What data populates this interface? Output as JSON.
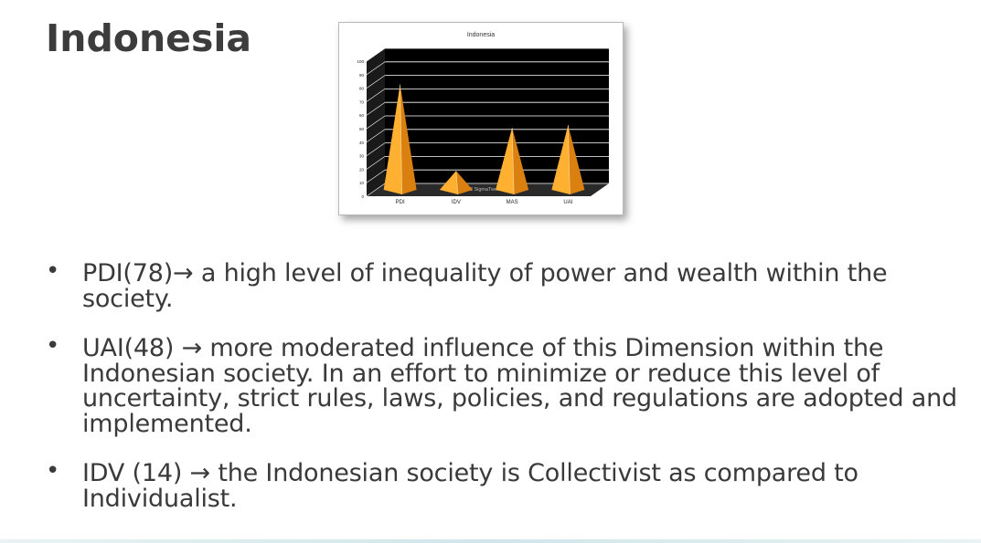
{
  "slide": {
    "title": "Indonesia"
  },
  "chart_data": {
    "type": "bar",
    "title": "Indonesia",
    "categories": [
      "PDI",
      "IDV",
      "MAS",
      "UAI"
    ],
    "values": [
      78,
      14,
      46,
      48
    ],
    "ylim": [
      0,
      100
    ],
    "yticks": [
      "0",
      "10",
      "20",
      "30",
      "40",
      "50",
      "60",
      "70",
      "80",
      "90",
      "100"
    ],
    "grid": true,
    "watermark": "©2003 SigmaTwoGroup.com",
    "bar_color": "#f5a020",
    "plot_background": "#000000"
  },
  "bullets": [
    {
      "marker": "•",
      "text": "PDI(78)→ a high level of inequality of power and wealth within the society."
    },
    {
      "marker": "•",
      "text": "UAI(48) → more moderated influence of this Dimension within the Indonesian society. In an effort to minimize or reduce this level of uncertainty, strict rules, laws, policies, and regulations are adopted and implemented."
    },
    {
      "marker": "•",
      "text": "IDV (14) → the Indonesian society is Collectivist as compared to Individualist."
    }
  ]
}
